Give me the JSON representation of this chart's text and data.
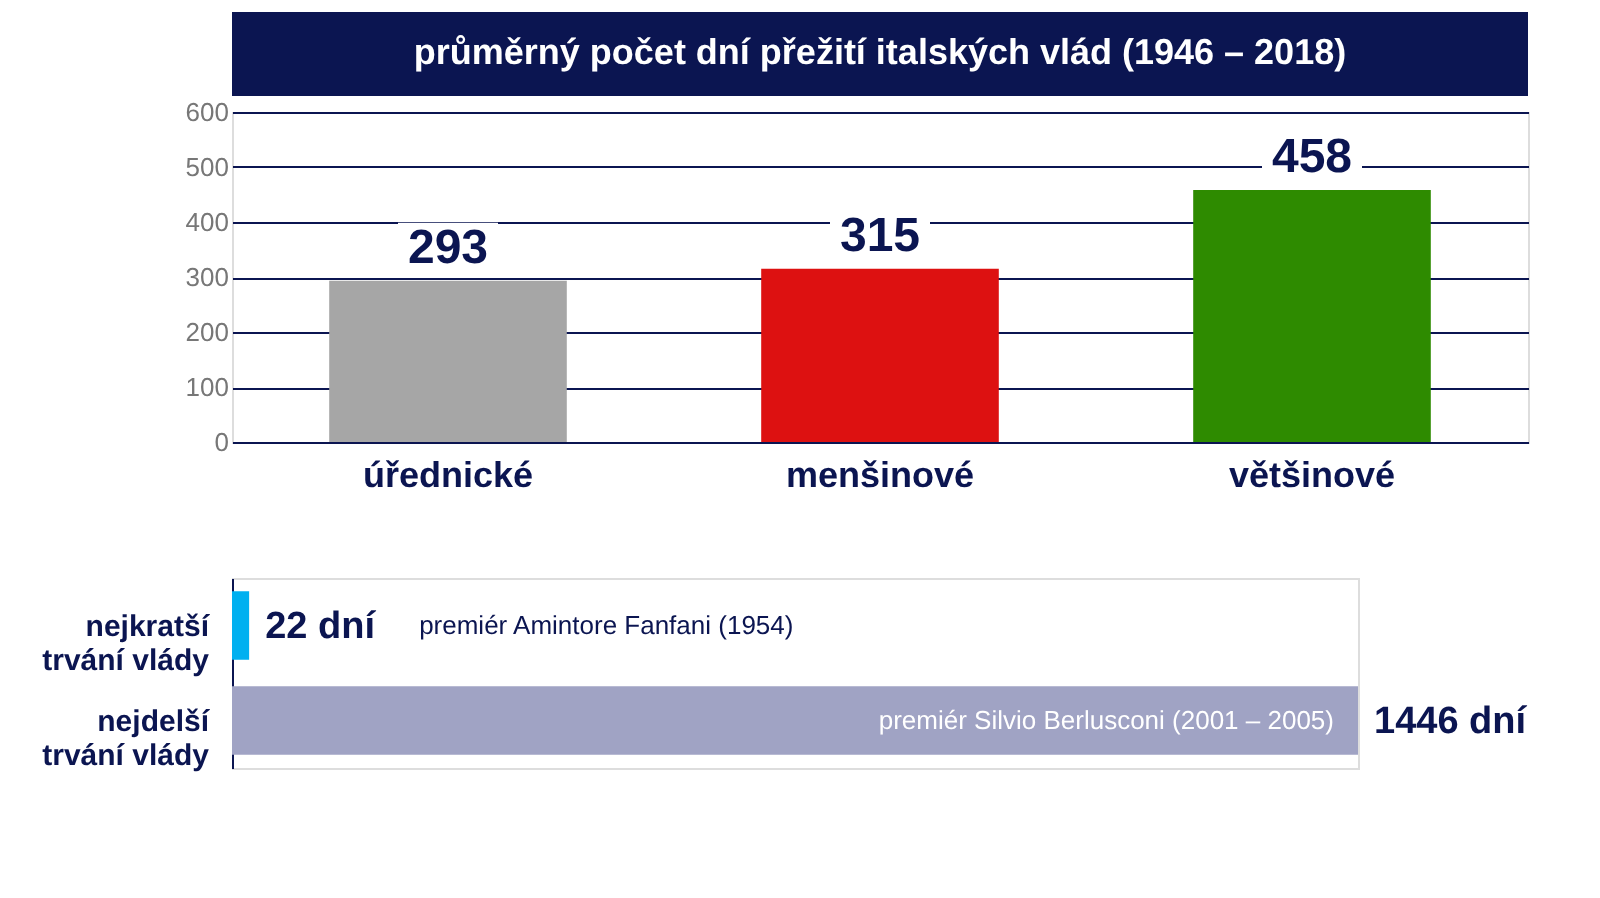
{
  "chart_data": [
    {
      "type": "bar",
      "title": "průměrný počet dní přežití italských vlád (1946 – 2018)",
      "categories": [
        "úřednické",
        "menšinové",
        "většinové"
      ],
      "values": [
        293,
        315,
        458
      ],
      "colors": [
        "#a6a6a6",
        "#dd1111",
        "#2e8b00"
      ],
      "ylim": [
        0,
        600
      ],
      "yticks": [
        0,
        100,
        200,
        300,
        400,
        500,
        600
      ],
      "grid": "y",
      "data_labels": true
    },
    {
      "type": "bar",
      "orientation": "horizontal",
      "categories": [
        "nejkratší\ntrvání vlády",
        "nejdelší\ntrvání vlády"
      ],
      "values": [
        22,
        1446
      ],
      "colors": [
        "#00b0f0",
        "#a0a3c4"
      ],
      "value_labels": [
        "22 dní",
        "1446 dní"
      ],
      "annotations": [
        "premiér Amintore Fanfani (1954)",
        "premiér Silvio Berlusconi (2001 – 2005)"
      ]
    }
  ]
}
